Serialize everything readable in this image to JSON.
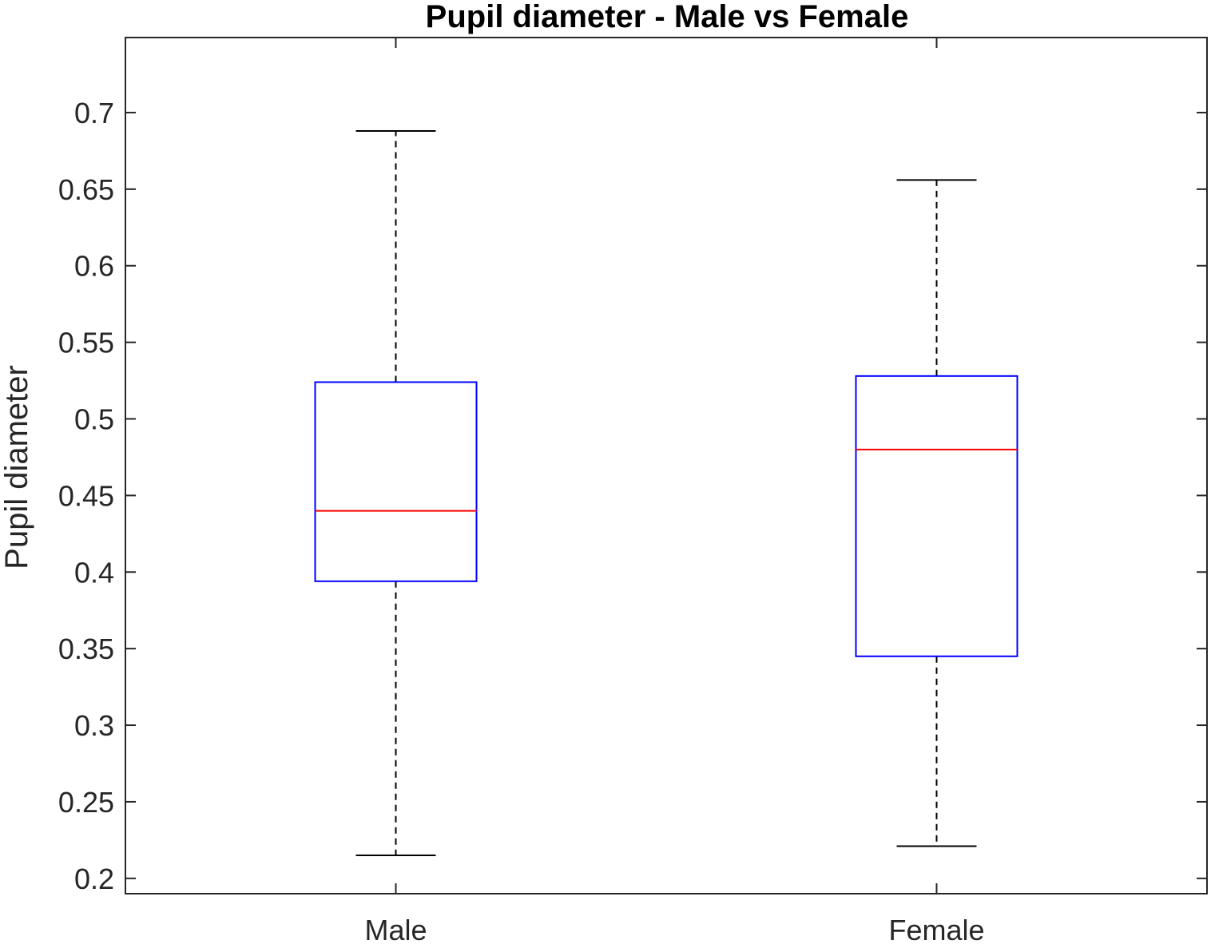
{
  "chart_data": {
    "type": "box",
    "title": "Pupil diameter - Male vs Female",
    "xlabel": "",
    "ylabel": "Pupil diameter",
    "categories": [
      "Male",
      "Female"
    ],
    "ylim": [
      0.19,
      0.749
    ],
    "yticks": [
      0.2,
      0.25,
      0.3,
      0.35,
      0.4,
      0.45,
      0.5,
      0.55,
      0.6,
      0.65,
      0.7
    ],
    "ytick_labels": [
      "0.2",
      "0.25",
      "0.3",
      "0.35",
      "0.4",
      "0.45",
      "0.5",
      "0.55",
      "0.6",
      "0.65",
      "0.7"
    ],
    "boxes": [
      {
        "category": "Male",
        "whisker_low": 0.215,
        "q1": 0.394,
        "median": 0.44,
        "q3": 0.524,
        "whisker_high": 0.688
      },
      {
        "category": "Female",
        "whisker_low": 0.221,
        "q1": 0.345,
        "median": 0.48,
        "q3": 0.528,
        "whisker_high": 0.656
      }
    ],
    "grid": false,
    "colors": {
      "box": "#0000ff",
      "median": "#ff0000",
      "whisker": "#000000",
      "axes": "#262626"
    }
  }
}
